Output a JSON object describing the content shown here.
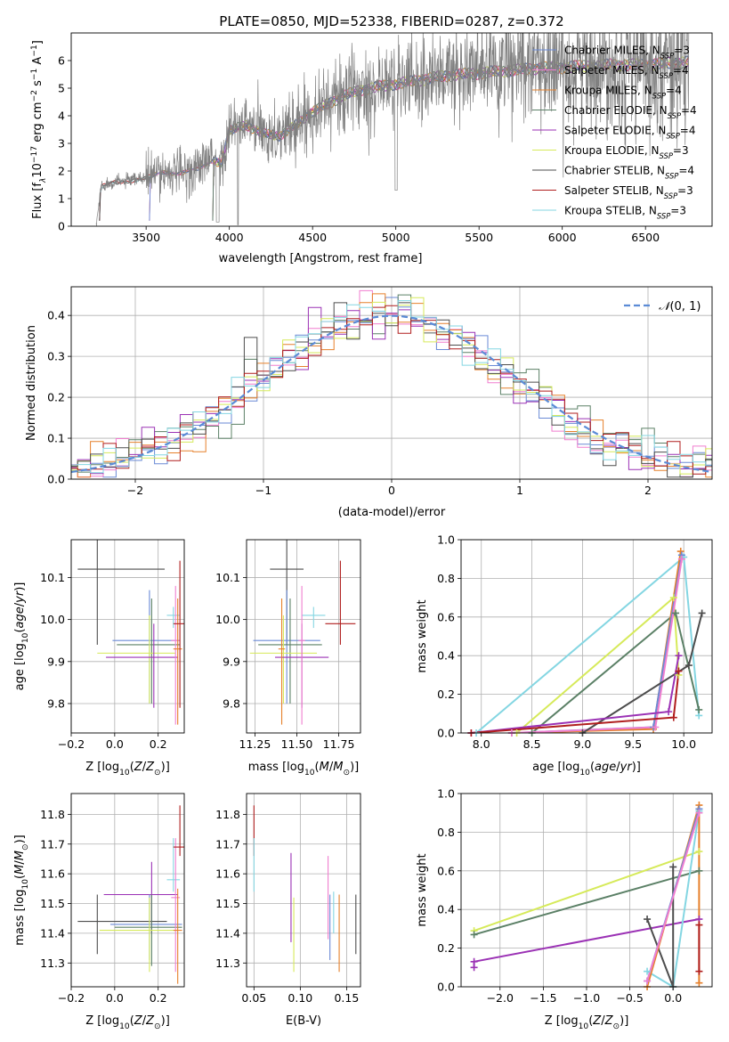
{
  "figure_title": "PLATE=0850, MJD=52338, FIBERID=0287, z=0.372",
  "colors": {
    "Chabrier MILES": "#6a8ad6",
    "Salpeter MILES": "#f07ecf",
    "Kroupa MILES": "#e6802b",
    "Chabrier ELODIE": "#5b8066",
    "Salpeter ELODIE": "#9b32b5",
    "Kroupa ELODIE": "#d6ea5a",
    "Chabrier STELIB": "#4d4d4d",
    "Salpeter STELIB": "#b01e1e",
    "Kroupa STELIB": "#84d6e2",
    "data_spectrum": "#808080",
    "normal_curve": "#5b8bd6",
    "grid": "#b0b0b0"
  },
  "chart_data": [
    {
      "id": "spectrum",
      "type": "line",
      "title": "PLATE=0850, MJD=52338, FIBERID=0287, z=0.372",
      "xlabel": "wavelength [Angstrom, rest frame]",
      "ylabel": "Flux [f_λ 10^-17 erg cm^-2 s^-1 A^-1]",
      "xlim": [
        3050,
        6900
      ],
      "ylim": [
        0,
        7
      ],
      "xticks": [
        3500,
        4000,
        4500,
        5000,
        5500,
        6000,
        6500
      ],
      "yticks": [
        0,
        1,
        2,
        3,
        4,
        5,
        6
      ],
      "grid": false,
      "legend_position": "upper-right",
      "legend": [
        {
          "model": "Chabrier MILES",
          "label": "Chabrier MILES, N",
          "sub": "SSP",
          "tail": "=3"
        },
        {
          "model": "Salpeter MILES",
          "label": "Salpeter MILES, N",
          "sub": "SSP",
          "tail": "=4"
        },
        {
          "model": "Kroupa MILES",
          "label": "Kroupa MILES, N",
          "sub": "SSP",
          "tail": "=4"
        },
        {
          "model": "Chabrier ELODIE",
          "label": "Chabrier ELODIE, N",
          "sub": "SSP",
          "tail": "=4"
        },
        {
          "model": "Salpeter ELODIE",
          "label": "Salpeter ELODIE, N",
          "sub": "SSP",
          "tail": "=4"
        },
        {
          "model": "Kroupa ELODIE",
          "label": "Kroupa ELODIE, N",
          "sub": "SSP",
          "tail": "=3"
        },
        {
          "model": "Chabrier STELIB",
          "label": "Chabrier STELIB, N",
          "sub": "SSP",
          "tail": "=4"
        },
        {
          "model": "Salpeter STELIB",
          "label": "Salpeter STELIB, N",
          "sub": "SSP",
          "tail": "=3"
        },
        {
          "model": "Kroupa STELIB",
          "label": "Kroupa STELIB, N",
          "sub": "SSP",
          "tail": "=3"
        }
      ],
      "data_continuum": {
        "x": [
          3200,
          3230,
          3300,
          3400,
          3500,
          3600,
          3700,
          3800,
          3900,
          3950,
          4000,
          4100,
          4200,
          4300,
          4400,
          4500,
          4600,
          4700,
          4800,
          4900,
          5000,
          5100,
          5200,
          5300,
          5400,
          5500,
          5600,
          5700,
          5800,
          5900,
          6000,
          6100,
          6200,
          6300,
          6400,
          6500,
          6600,
          6700,
          6760
        ],
        "y": [
          0,
          1.45,
          1.6,
          1.65,
          1.75,
          2.0,
          1.9,
          2.1,
          2.4,
          2.3,
          3.5,
          3.7,
          3.4,
          3.3,
          3.7,
          4.2,
          4.5,
          4.8,
          5.0,
          5.1,
          5.2,
          5.3,
          5.4,
          5.5,
          5.55,
          5.6,
          5.65,
          5.7,
          5.75,
          5.8,
          5.8,
          5.85,
          5.85,
          5.9,
          5.9,
          5.9,
          5.95,
          6.0,
          6.0
        ],
        "noise_start": 3500,
        "end": 6760
      },
      "model_x_start": {
        "Chabrier MILES": 3520,
        "Salpeter MILES": 3520,
        "Kroupa MILES": 3520,
        "Chabrier ELODIE": 3900,
        "Salpeter ELODIE": 3900,
        "Kroupa ELODIE": 3900,
        "Chabrier STELIB": 3220,
        "Salpeter STELIB": 3220,
        "Kroupa STELIB": 3220
      }
    },
    {
      "id": "residuals",
      "type": "step",
      "xlabel": "(data-model)/error",
      "ylabel": "Normed distribution",
      "xlim": [
        -2.5,
        2.5
      ],
      "ylim": [
        0,
        0.47
      ],
      "xticks": [
        -2,
        -1,
        0,
        1,
        2
      ],
      "yticks": [
        0.0,
        0.1,
        0.2,
        0.3,
        0.4
      ],
      "grid": true,
      "legend_position": "upper-right",
      "legend": [
        {
          "label": "𝒩(0, 1)"
        }
      ],
      "normal_curve": {
        "mean": 0,
        "sigma": 1,
        "style": "dashed"
      },
      "bin_width": 0.1
    },
    {
      "id": "age_vs_Z",
      "type": "errorbar",
      "xlabel": "Z [log10(Z/Z⊙)]",
      "ylabel": "age [log10(age/yr)]",
      "xlim": [
        -0.2,
        0.32
      ],
      "ylim": [
        9.73,
        10.19
      ],
      "xticks": [
        -0.2,
        0.0,
        0.2
      ],
      "yticks": [
        9.8,
        9.9,
        10.0,
        10.1
      ],
      "grid": true,
      "points": [
        {
          "model": "Chabrier STELIB",
          "x": -0.08,
          "xerr": [
            0.09,
            0.31
          ],
          "y": 10.12,
          "yerr": [
            0.18,
            0.07
          ]
        },
        {
          "model": "Chabrier MILES",
          "x": 0.16,
          "xerr": [
            0.17,
            0.14
          ],
          "y": 9.95,
          "yerr": [
            0.15,
            0.12
          ]
        },
        {
          "model": "Chabrier ELODIE",
          "x": 0.17,
          "xerr": [
            0.16,
            0.13
          ],
          "y": 9.94,
          "yerr": [
            0.14,
            0.11
          ]
        },
        {
          "model": "Kroupa ELODIE",
          "x": 0.16,
          "xerr": [
            0.24,
            0.12
          ],
          "y": 9.92,
          "yerr": [
            0.12,
            0.09
          ]
        },
        {
          "model": "Salpeter ELODIE",
          "x": 0.18,
          "xerr": [
            0.22,
            0.11
          ],
          "y": 9.91,
          "yerr": [
            0.12,
            0.08
          ]
        },
        {
          "model": "Kroupa STELIB",
          "x": 0.27,
          "xerr": [
            0.03,
            0.03
          ],
          "y": 10.01,
          "yerr": [
            0.03,
            0.02
          ]
        },
        {
          "model": "Salpeter MILES",
          "x": 0.28,
          "xerr": [
            0.02,
            0.02
          ],
          "y": 9.95,
          "yerr": [
            0.2,
            0.13
          ]
        },
        {
          "model": "Kroupa MILES",
          "x": 0.29,
          "xerr": [
            0.02,
            0.02
          ],
          "y": 9.93,
          "yerr": [
            0.18,
            0.12
          ]
        },
        {
          "model": "Salpeter STELIB",
          "x": 0.3,
          "xerr": [
            0.03,
            0.02
          ],
          "y": 9.99,
          "yerr": [
            0.2,
            0.15
          ]
        }
      ]
    },
    {
      "id": "age_vs_mass",
      "type": "errorbar",
      "xlabel": "mass [log10(M/M⊙)]",
      "ylabel": "",
      "xlim": [
        11.2,
        11.88
      ],
      "ylim": [
        9.73,
        10.19
      ],
      "xticks": [
        11.25,
        11.5,
        11.75
      ],
      "yticks": [
        9.8,
        9.9,
        10.0,
        10.1
      ],
      "grid": true,
      "points": [
        {
          "model": "Chabrier STELIB",
          "x": 11.44,
          "xerr": [
            0.1,
            0.1
          ],
          "y": 10.12,
          "yerr": [
            0.18,
            0.07
          ]
        },
        {
          "model": "Chabrier MILES",
          "x": 11.44,
          "xerr": [
            0.2,
            0.2
          ],
          "y": 9.95,
          "yerr": [
            0.15,
            0.12
          ]
        },
        {
          "model": "Chabrier ELODIE",
          "x": 11.46,
          "xerr": [
            0.19,
            0.19
          ],
          "y": 9.94,
          "yerr": [
            0.14,
            0.11
          ]
        },
        {
          "model": "Kroupa ELODIE",
          "x": 11.42,
          "xerr": [
            0.2,
            0.2
          ],
          "y": 9.92,
          "yerr": [
            0.12,
            0.09
          ]
        },
        {
          "model": "Salpeter ELODIE",
          "x": 11.53,
          "xerr": [
            0.16,
            0.16
          ],
          "y": 9.91,
          "yerr": [
            0.12,
            0.08
          ]
        },
        {
          "model": "Kroupa STELIB",
          "x": 11.6,
          "xerr": [
            0.07,
            0.07
          ],
          "y": 10.01,
          "yerr": [
            0.03,
            0.02
          ]
        },
        {
          "model": "Salpeter MILES",
          "x": 11.53,
          "xerr": [
            0.02,
            0.02
          ],
          "y": 9.95,
          "yerr": [
            0.2,
            0.13
          ]
        },
        {
          "model": "Kroupa MILES",
          "x": 11.41,
          "xerr": [
            0.02,
            0.02
          ],
          "y": 9.93,
          "yerr": [
            0.18,
            0.12
          ]
        },
        {
          "model": "Salpeter STELIB",
          "x": 11.76,
          "xerr": [
            0.09,
            0.09
          ],
          "y": 9.99,
          "yerr": [
            0.05,
            0.15
          ]
        }
      ]
    },
    {
      "id": "weight_vs_age",
      "type": "line",
      "xlabel": "age [log10(age/yr)]",
      "ylabel": "mass weight",
      "xlim": [
        7.8,
        10.28
      ],
      "ylim": [
        0,
        1.0
      ],
      "xticks": [
        8.0,
        8.5,
        9.0,
        9.5,
        10.0
      ],
      "yticks": [
        0.0,
        0.2,
        0.4,
        0.6,
        0.8,
        1.0
      ],
      "grid": true,
      "series": [
        {
          "model": "Kroupa STELIB",
          "x": [
            7.95,
            10.0,
            10.15
          ],
          "y": [
            0.0,
            0.91,
            0.09
          ]
        },
        {
          "model": "Kroupa ELODIE",
          "x": [
            8.35,
            9.9,
            9.95
          ],
          "y": [
            0.0,
            0.7,
            0.3
          ]
        },
        {
          "model": "Chabrier ELODIE",
          "x": [
            8.5,
            9.92,
            10.15
          ],
          "y": [
            0.0,
            0.62,
            0.12
          ]
        },
        {
          "model": "Kroupa MILES",
          "x": [
            8.3,
            9.7,
            9.97
          ],
          "y": [
            0.0,
            0.02,
            0.94
          ]
        },
        {
          "model": "Chabrier MILES",
          "x": [
            8.3,
            9.7,
            9.98
          ],
          "y": [
            0.0,
            0.03,
            0.92
          ]
        },
        {
          "model": "Salpeter MILES",
          "x": [
            8.3,
            9.72,
            9.98
          ],
          "y": [
            0.0,
            0.03,
            0.9
          ]
        },
        {
          "model": "Chabrier STELIB",
          "x": [
            9.0,
            10.05,
            10.18
          ],
          "y": [
            0.0,
            0.35,
            0.62
          ]
        },
        {
          "model": "Salpeter ELODIE",
          "x": [
            7.9,
            9.85,
            9.95
          ],
          "y": [
            0.0,
            0.11,
            0.4
          ]
        },
        {
          "model": "Salpeter STELIB",
          "x": [
            7.9,
            9.9,
            9.95
          ],
          "y": [
            0.0,
            0.08,
            0.32
          ]
        }
      ]
    },
    {
      "id": "mass_vs_Z",
      "type": "errorbar",
      "xlabel": "Z [log10(Z/Z⊙)]",
      "ylabel": "mass [log10(M/M⊙)]",
      "xlim": [
        -0.2,
        0.32
      ],
      "ylim": [
        11.22,
        11.87
      ],
      "xticks": [
        -0.2,
        0.0,
        0.2
      ],
      "yticks": [
        11.3,
        11.4,
        11.5,
        11.6,
        11.7,
        11.8
      ],
      "grid": true,
      "points": [
        {
          "model": "Chabrier STELIB",
          "x": -0.08,
          "xerr": [
            0.09,
            0.32
          ],
          "y": 11.44,
          "yerr": [
            0.11,
            0.09
          ]
        },
        {
          "model": "Salpeter ELODIE",
          "x": 0.17,
          "xerr": [
            0.22,
            0.12
          ],
          "y": 11.53,
          "yerr": [
            0.13,
            0.11
          ]
        },
        {
          "model": "Chabrier MILES",
          "x": 0.16,
          "xerr": [
            0.18,
            0.15
          ],
          "y": 11.43,
          "yerr": [
            0.12,
            0.1
          ]
        },
        {
          "model": "Chabrier ELODIE",
          "x": 0.17,
          "xerr": [
            0.17,
            0.14
          ],
          "y": 11.42,
          "yerr": [
            0.13,
            0.11
          ]
        },
        {
          "model": "Kroupa ELODIE",
          "x": 0.16,
          "xerr": [
            0.23,
            0.13
          ],
          "y": 11.41,
          "yerr": [
            0.14,
            0.11
          ]
        },
        {
          "model": "Kroupa STELIB",
          "x": 0.27,
          "xerr": [
            0.03,
            0.03
          ],
          "y": 11.58,
          "yerr": [
            0.04,
            0.14
          ]
        },
        {
          "model": "Salpeter MILES",
          "x": 0.28,
          "xerr": [
            0.02,
            0.02
          ],
          "y": 11.52,
          "yerr": [
            0.25,
            0.2
          ]
        },
        {
          "model": "Kroupa MILES",
          "x": 0.29,
          "xerr": [
            0.02,
            0.02
          ],
          "y": 11.41,
          "yerr": [
            0.18,
            0.14
          ]
        },
        {
          "model": "Salpeter STELIB",
          "x": 0.3,
          "xerr": [
            0.03,
            0.02
          ],
          "y": 11.69,
          "yerr": [
            0.03,
            0.14
          ]
        }
      ]
    },
    {
      "id": "mass_vs_ebv",
      "type": "errorbar",
      "xlabel": "E(B-V)",
      "ylabel": "",
      "xlim": [
        0.042,
        0.165
      ],
      "ylim": [
        11.22,
        11.87
      ],
      "xticks": [
        0.05,
        0.1,
        0.15
      ],
      "yticks": [
        11.3,
        11.4,
        11.5,
        11.6,
        11.7,
        11.8
      ],
      "grid": true,
      "points": [
        {
          "model": "Salpeter STELIB",
          "x": 0.05,
          "y": 11.73,
          "yerr": [
            0.07,
            0.1
          ]
        },
        {
          "model": "Kroupa STELIB",
          "x": 0.05,
          "y": 11.62,
          "yerr": [
            0.08,
            0.1
          ]
        },
        {
          "model": "Salpeter ELODIE",
          "x": 0.09,
          "y": 11.53,
          "yerr": [
            0.16,
            0.14
          ]
        },
        {
          "model": "Kroupa ELODIE",
          "x": 0.093,
          "y": 11.41,
          "yerr": [
            0.14,
            0.11
          ]
        },
        {
          "model": "Salpeter MILES",
          "x": 0.13,
          "y": 11.52,
          "yerr": [
            0.14,
            0.14
          ]
        },
        {
          "model": "Chabrier MILES",
          "x": 0.132,
          "y": 11.43,
          "yerr": [
            0.12,
            0.1
          ]
        },
        {
          "model": "Kroupa STELIB",
          "x": 0.136,
          "y": 11.5,
          "yerr": [
            0.1,
            0.04
          ]
        },
        {
          "model": "Kroupa MILES",
          "x": 0.142,
          "y": 11.41,
          "yerr": [
            0.14,
            0.12
          ]
        },
        {
          "model": "Chabrier STELIB",
          "x": 0.16,
          "y": 11.43,
          "yerr": [
            0.1,
            0.1
          ]
        }
      ]
    },
    {
      "id": "weight_vs_Z",
      "type": "line",
      "xlabel": "Z [log10(Z/Z⊙)]",
      "ylabel": "mass weight",
      "xlim": [
        -2.45,
        0.45
      ],
      "ylim": [
        0,
        1.0
      ],
      "xticks": [
        -2.0,
        -1.5,
        -1.0,
        -0.5,
        0.0
      ],
      "yticks": [
        0.0,
        0.2,
        0.4,
        0.6,
        0.8,
        1.0
      ],
      "grid": true,
      "series": [
        {
          "model": "Kroupa ELODIE",
          "x": [
            -2.3,
            0.3
          ],
          "y": [
            0.29,
            0.7
          ]
        },
        {
          "model": "Chabrier ELODIE",
          "x": [
            -2.3,
            0.3
          ],
          "y": [
            0.27,
            0.6
          ]
        },
        {
          "model": "Salpeter ELODIE",
          "x": [
            -2.3,
            -2.3,
            0.3
          ],
          "y": [
            0.1,
            0.13,
            0.35
          ]
        },
        {
          "model": "Kroupa STELIB",
          "x": [
            -0.3,
            0.0,
            0.3
          ],
          "y": [
            0.08,
            0.0,
            0.91
          ]
        },
        {
          "model": "Chabrier STELIB",
          "x": [
            -0.3,
            0.0,
            0.0
          ],
          "y": [
            0.35,
            0.0,
            0.62
          ]
        },
        {
          "model": "Kroupa MILES",
          "x": [
            -0.3,
            0.3,
            0.3
          ],
          "y": [
            0.0,
            0.94,
            0.02
          ]
        },
        {
          "model": "Chabrier MILES",
          "x": [
            -0.3,
            0.3
          ],
          "y": [
            0.03,
            0.92
          ]
        },
        {
          "model": "Salpeter MILES",
          "x": [
            -0.3,
            0.3
          ],
          "y": [
            0.03,
            0.9
          ]
        },
        {
          "model": "Salpeter STELIB",
          "x": [
            0.3,
            0.3
          ],
          "y": [
            0.08,
            0.32
          ]
        }
      ]
    }
  ]
}
